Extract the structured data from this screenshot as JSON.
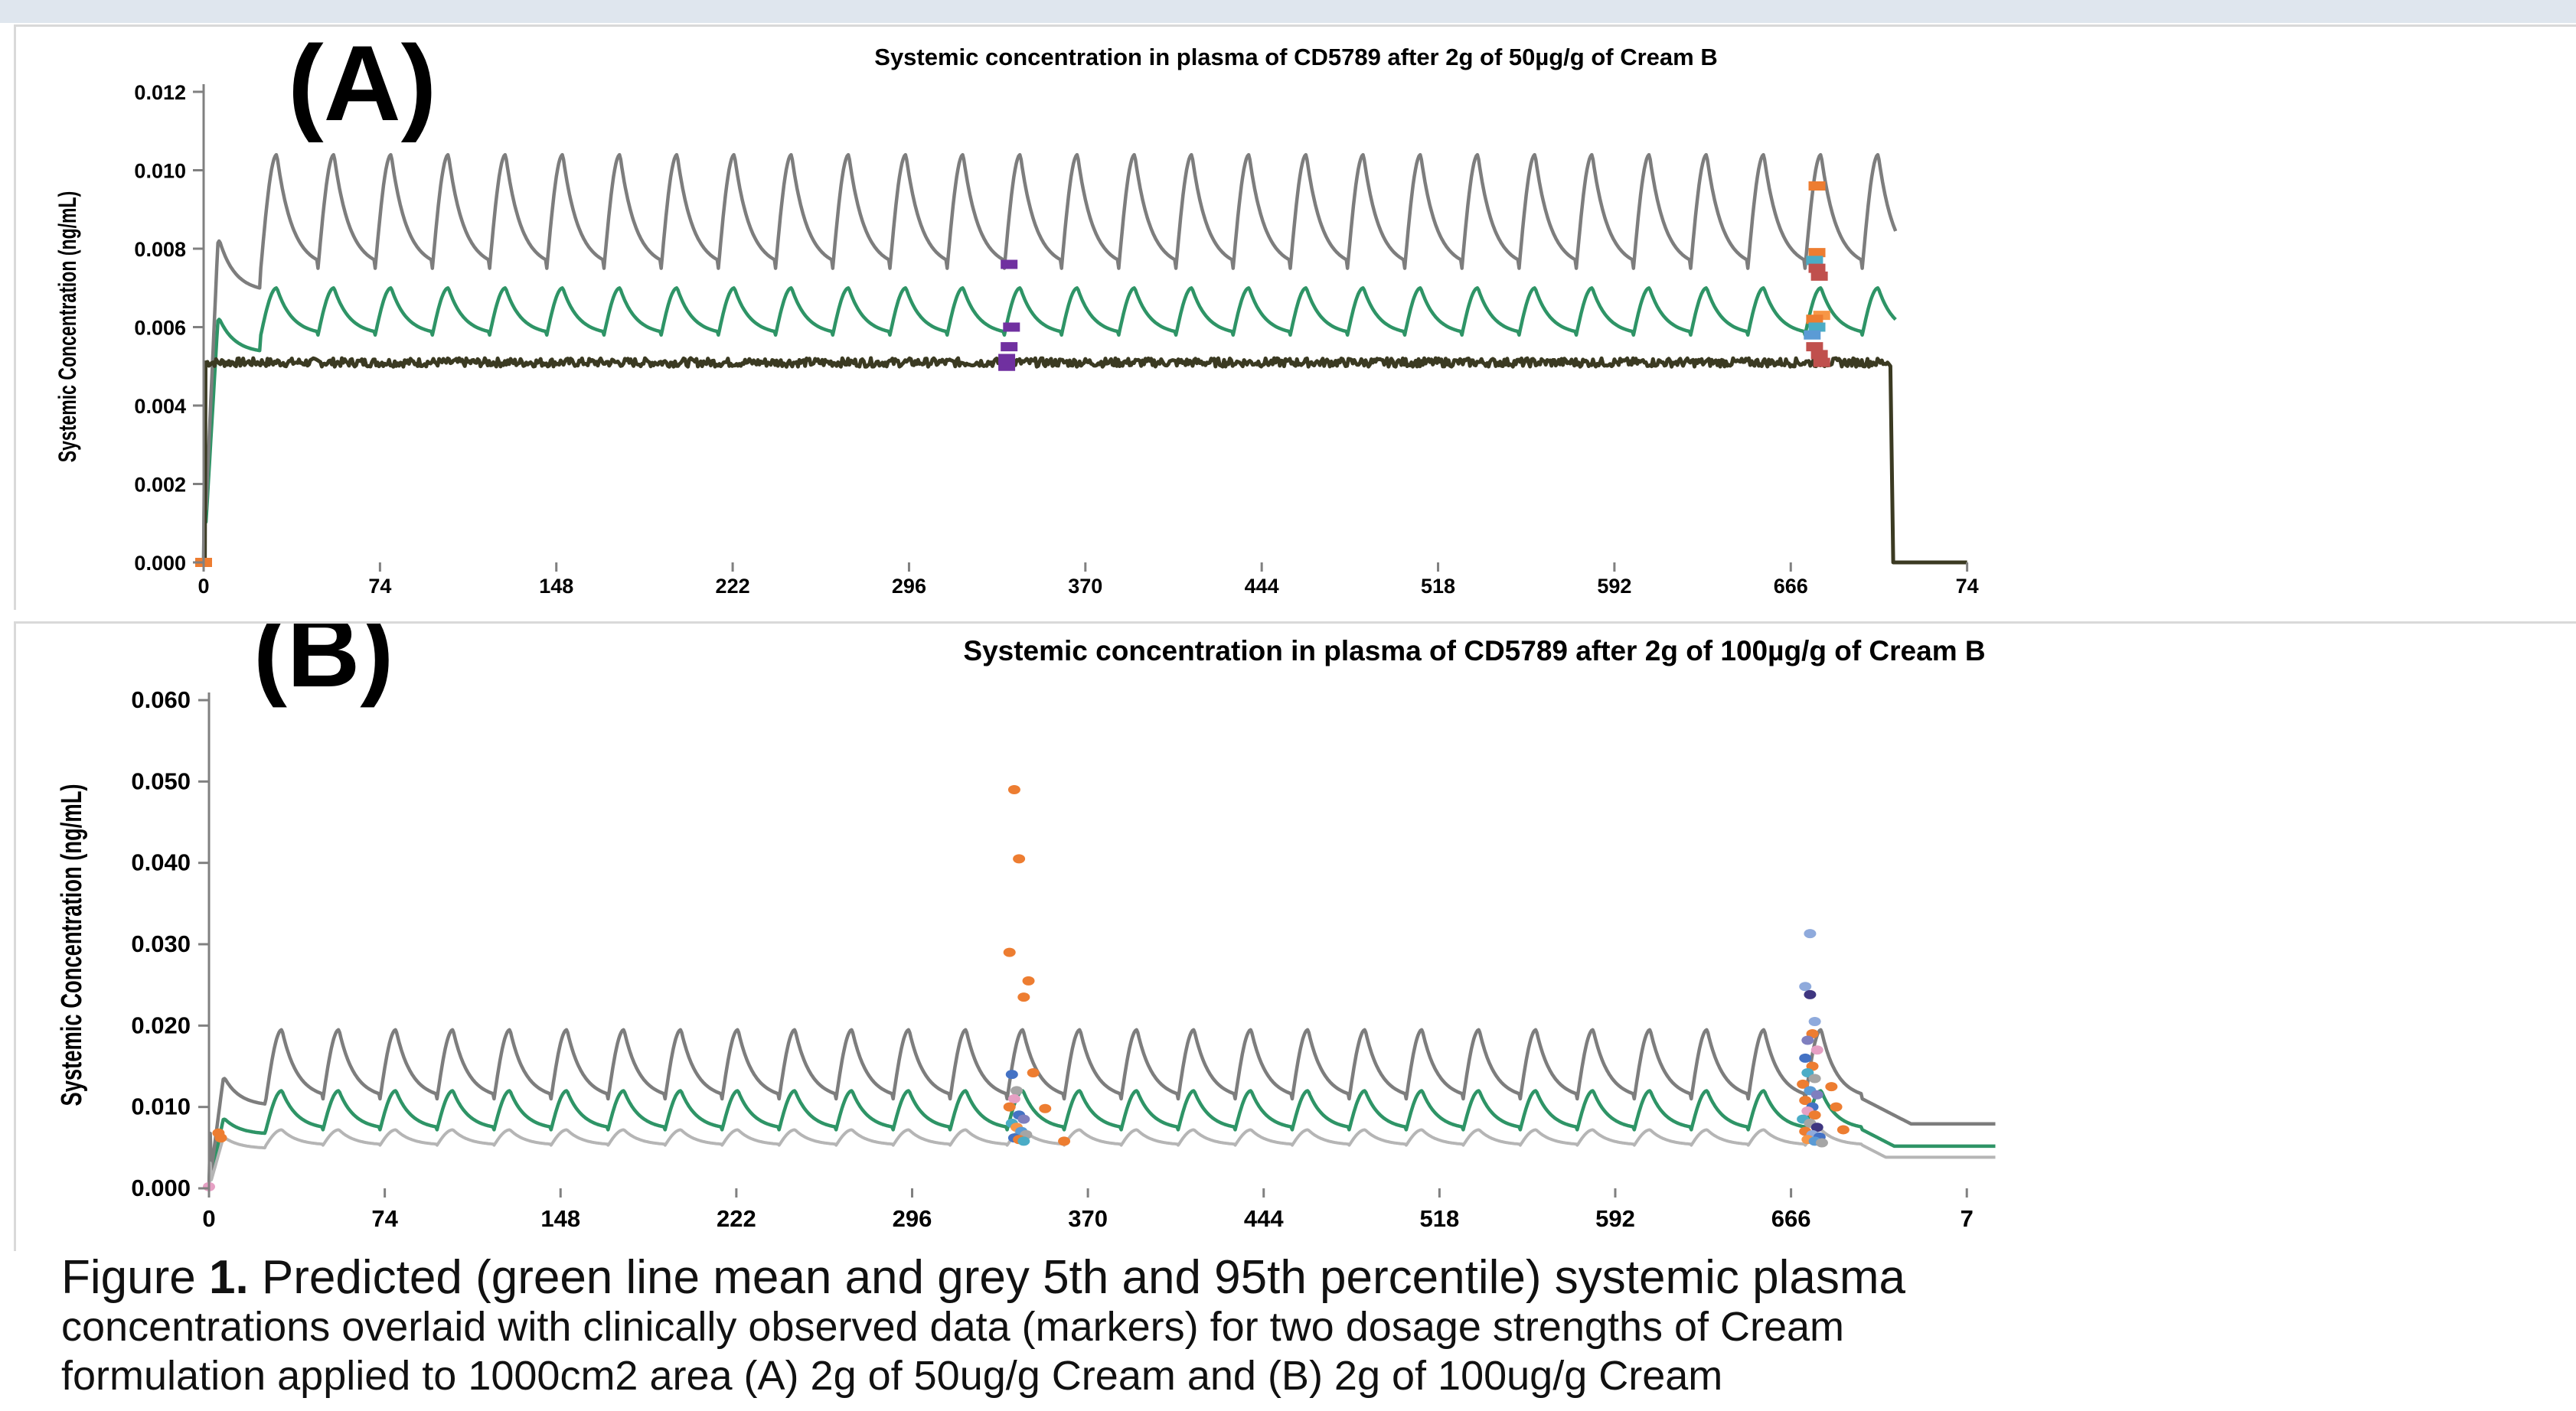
{
  "panels": [
    {
      "letter": "(A)",
      "title": "Systemic concentration in plasma of CD5789 after 2g of 50µg/g of Cream B",
      "ylabel": "Systemic Concentration (ng/mL)",
      "yticks": [
        "0.000",
        "0.002",
        "0.004",
        "0.006",
        "0.008",
        "0.010",
        "0.012"
      ],
      "xticks": [
        "0",
        "74",
        "148",
        "222",
        "296",
        "370",
        "444",
        "518",
        "592",
        "666",
        "74"
      ]
    },
    {
      "letter": "(B)",
      "title": "Systemic concentration in plasma of CD5789 after 2g of 100µg/g of Cream B",
      "ylabel": "Systemic Concentration (ng/mL)",
      "yticks": [
        "0.000",
        "0.010",
        "0.020",
        "0.030",
        "0.040",
        "0.050",
        "0.060"
      ],
      "xticks": [
        "0",
        "74",
        "148",
        "222",
        "296",
        "370",
        "444",
        "518",
        "592",
        "666",
        "7"
      ]
    }
  ],
  "caption": {
    "fig_label": "Figure ",
    "fig_number": "1.",
    "line1_rest": " Predicted (green line mean and grey 5th and 95th percentile) systemic plasma",
    "line2": "concentrations overlaid with clinically observed data (markers) for two dosage strengths of Cream",
    "line3": "formulation applied to 1000cm2 area (A) 2g of 50ug/g Cream and (B) 2g of 100ug/g Cream"
  },
  "colors": {
    "mean": "#2e9466",
    "p95": "#7d7d7d",
    "p5_a": "#3b3a22",
    "p5_b": "#b5b5b5",
    "axis": "#808080",
    "background_strip": "#dfe6ee"
  },
  "chart_data": [
    {
      "type": "line",
      "panel": "A",
      "title": "Systemic concentration in plasma of CD5789 after 2g of 50µg/g of Cream B",
      "ylabel": "Systemic Concentration (ng/mL)",
      "xlim": [
        0,
        740
      ],
      "ylim": [
        0,
        0.012
      ],
      "dose_interval": 24,
      "dose_end": 720,
      "series": [
        {
          "role": "mean",
          "first_dose_peak": 0.0062,
          "steady_peak": 0.007,
          "steady_trough": 0.0058
        },
        {
          "role": "p95",
          "first_dose_peak": 0.0082,
          "steady_peak": 0.0104,
          "steady_trough": 0.0075
        },
        {
          "role": "p5",
          "level": 0.0051
        }
      ],
      "observed": [
        {
          "x": 0,
          "y": 0.0,
          "color": "#ed7d31"
        },
        {
          "x": 338,
          "y": 0.0076,
          "color": "#7030a0"
        },
        {
          "x": 339,
          "y": 0.006,
          "color": "#7030a0"
        },
        {
          "x": 338,
          "y": 0.0055,
          "color": "#7030a0"
        },
        {
          "x": 337,
          "y": 0.0052,
          "color": "#7030a0"
        },
        {
          "x": 337,
          "y": 0.005,
          "color": "#7030a0"
        },
        {
          "x": 677,
          "y": 0.0096,
          "color": "#ed7d31"
        },
        {
          "x": 677,
          "y": 0.0079,
          "color": "#ed7d31"
        },
        {
          "x": 676,
          "y": 0.0077,
          "color": "#4bacc6"
        },
        {
          "x": 677,
          "y": 0.0075,
          "color": "#c0504d"
        },
        {
          "x": 678,
          "y": 0.0073,
          "color": "#c0504d"
        },
        {
          "x": 679,
          "y": 0.0063,
          "color": "#f79646"
        },
        {
          "x": 676,
          "y": 0.0062,
          "color": "#ed7d31"
        },
        {
          "x": 677,
          "y": 0.006,
          "color": "#4bacc6"
        },
        {
          "x": 675,
          "y": 0.0058,
          "color": "#5b9bd5"
        },
        {
          "x": 676,
          "y": 0.0055,
          "color": "#c0504d"
        },
        {
          "x": 678,
          "y": 0.0053,
          "color": "#c0504d"
        },
        {
          "x": 679,
          "y": 0.0051,
          "color": "#c0504d"
        }
      ]
    },
    {
      "type": "line",
      "panel": "B",
      "title": "Systemic concentration in plasma of CD5789 after 2g of 100µg/g of Cream B",
      "ylabel": "Systemic Concentration (ng/mL)",
      "xlim": [
        0,
        740
      ],
      "ylim": [
        0,
        0.06
      ],
      "dose_interval": 24,
      "dose_end": 696,
      "series": [
        {
          "role": "mean",
          "first_dose_peak": 0.0085,
          "steady_peak": 0.012,
          "steady_trough": 0.0072
        },
        {
          "role": "p95",
          "first_dose_peak": 0.0135,
          "steady_peak": 0.0195,
          "steady_trough": 0.011
        },
        {
          "role": "p5",
          "first_dose_peak": 0.0062,
          "steady_peak": 0.0072,
          "steady_trough": 0.0053
        }
      ],
      "observed": [
        {
          "x": 0,
          "y": 0.0002,
          "color": "#e6a0c4"
        },
        {
          "x": 4,
          "y": 0.0068,
          "color": "#ed7d31"
        },
        {
          "x": 5,
          "y": 0.0062,
          "color": "#ed7d31"
        },
        {
          "x": 339,
          "y": 0.049,
          "color": "#ed7d31"
        },
        {
          "x": 341,
          "y": 0.0405,
          "color": "#ed7d31"
        },
        {
          "x": 337,
          "y": 0.029,
          "color": "#ed7d31"
        },
        {
          "x": 345,
          "y": 0.0255,
          "color": "#ed7d31"
        },
        {
          "x": 343,
          "y": 0.0235,
          "color": "#ed7d31"
        },
        {
          "x": 347,
          "y": 0.0142,
          "color": "#ed7d31"
        },
        {
          "x": 338,
          "y": 0.014,
          "color": "#4472c4"
        },
        {
          "x": 340,
          "y": 0.012,
          "color": "#a5a5a5"
        },
        {
          "x": 339,
          "y": 0.011,
          "color": "#e6a0c4"
        },
        {
          "x": 337,
          "y": 0.01,
          "color": "#ed7d31"
        },
        {
          "x": 341,
          "y": 0.009,
          "color": "#4472c4"
        },
        {
          "x": 343,
          "y": 0.0085,
          "color": "#7f7fbf"
        },
        {
          "x": 338,
          "y": 0.008,
          "color": "#4bacc6"
        },
        {
          "x": 340,
          "y": 0.0075,
          "color": "#f79646"
        },
        {
          "x": 342,
          "y": 0.007,
          "color": "#5b9bd5"
        },
        {
          "x": 344,
          "y": 0.0066,
          "color": "#a5a5a5"
        },
        {
          "x": 339,
          "y": 0.0062,
          "color": "#4472c4"
        },
        {
          "x": 341,
          "y": 0.006,
          "color": "#ed7d31"
        },
        {
          "x": 343,
          "y": 0.0058,
          "color": "#4bacc6"
        },
        {
          "x": 352,
          "y": 0.0098,
          "color": "#ed7d31"
        },
        {
          "x": 360,
          "y": 0.0058,
          "color": "#ed7d31"
        },
        {
          "x": 674,
          "y": 0.0313,
          "color": "#8faadc"
        },
        {
          "x": 672,
          "y": 0.0248,
          "color": "#8faadc"
        },
        {
          "x": 674,
          "y": 0.0238,
          "color": "#3f3680"
        },
        {
          "x": 676,
          "y": 0.0205,
          "color": "#8faadc"
        },
        {
          "x": 675,
          "y": 0.019,
          "color": "#ed7d31"
        },
        {
          "x": 673,
          "y": 0.0182,
          "color": "#7f7fbf"
        },
        {
          "x": 677,
          "y": 0.017,
          "color": "#e6a0c4"
        },
        {
          "x": 672,
          "y": 0.016,
          "color": "#4472c4"
        },
        {
          "x": 675,
          "y": 0.015,
          "color": "#ed7d31"
        },
        {
          "x": 673,
          "y": 0.0142,
          "color": "#4bacc6"
        },
        {
          "x": 676,
          "y": 0.0135,
          "color": "#a5a5a5"
        },
        {
          "x": 671,
          "y": 0.0128,
          "color": "#ed7d31"
        },
        {
          "x": 674,
          "y": 0.012,
          "color": "#5b9bd5"
        },
        {
          "x": 677,
          "y": 0.0115,
          "color": "#7f7fbf"
        },
        {
          "x": 672,
          "y": 0.0108,
          "color": "#ed7d31"
        },
        {
          "x": 675,
          "y": 0.01,
          "color": "#4472c4"
        },
        {
          "x": 673,
          "y": 0.0095,
          "color": "#e6a0c4"
        },
        {
          "x": 676,
          "y": 0.009,
          "color": "#ed7d31"
        },
        {
          "x": 671,
          "y": 0.0085,
          "color": "#4bacc6"
        },
        {
          "x": 674,
          "y": 0.008,
          "color": "#a5a5a5"
        },
        {
          "x": 677,
          "y": 0.0075,
          "color": "#3f3680"
        },
        {
          "x": 672,
          "y": 0.007,
          "color": "#ed7d31"
        },
        {
          "x": 675,
          "y": 0.0066,
          "color": "#8faadc"
        },
        {
          "x": 678,
          "y": 0.0063,
          "color": "#4472c4"
        },
        {
          "x": 673,
          "y": 0.006,
          "color": "#f79646"
        },
        {
          "x": 676,
          "y": 0.0058,
          "color": "#5b9bd5"
        },
        {
          "x": 679,
          "y": 0.0056,
          "color": "#a5a5a5"
        },
        {
          "x": 683,
          "y": 0.0125,
          "color": "#ed7d31"
        },
        {
          "x": 685,
          "y": 0.01,
          "color": "#ed7d31"
        },
        {
          "x": 688,
          "y": 0.0072,
          "color": "#ed7d31"
        }
      ]
    }
  ]
}
